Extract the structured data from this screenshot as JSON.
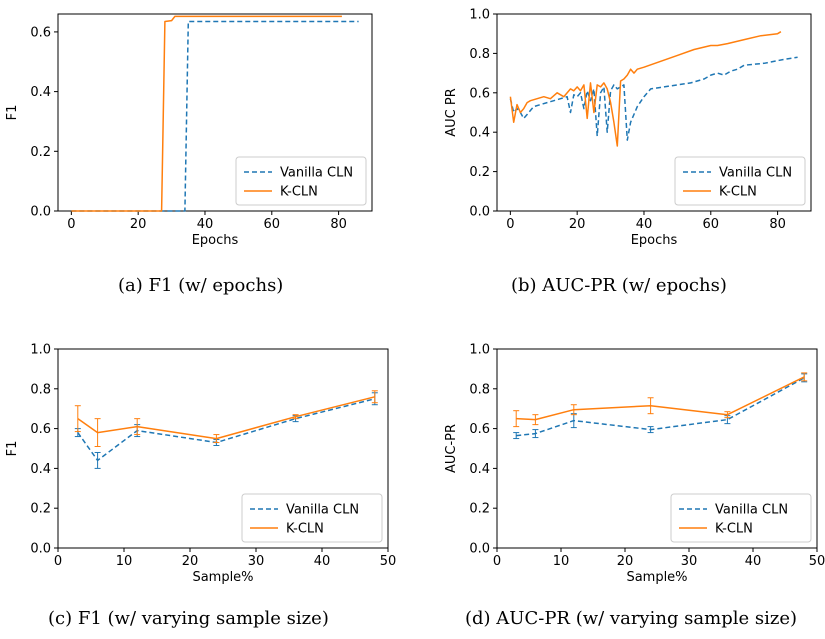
{
  "colors": {
    "vanilla": "#1f77b4",
    "kcln": "#ff7f0e"
  },
  "captions": [
    "(a) F1 (w/ epochs)",
    "(b) AUC-PR (w/ epochs)",
    "(c) F1 (w/ varying sample size)",
    "(d) AUC-PR (w/ varying sample size)"
  ],
  "chart_data": [
    {
      "type": "line",
      "title": "",
      "xlabel": "Epochs",
      "ylabel": "F1",
      "xlim": [
        -4,
        90
      ],
      "ylim": [
        0,
        0.66
      ],
      "xticks": [
        "0",
        "20",
        "40",
        "60",
        "80"
      ],
      "xtick_values": [
        0,
        20,
        40,
        60,
        80
      ],
      "yticks": [
        "0.0",
        "0.2",
        "0.4",
        "0.6"
      ],
      "ytick_values": [
        0,
        0.2,
        0.4,
        0.6
      ],
      "legend": "bottom-right",
      "series": [
        {
          "name": "Vanilla CLN",
          "style": "dashed",
          "x": [
            0,
            34,
            35,
            36,
            86
          ],
          "y": [
            0,
            0,
            0.635,
            0.635,
            0.635
          ]
        },
        {
          "name": "K-CLN",
          "style": "solid",
          "x": [
            0,
            27,
            28,
            30,
            31,
            81
          ],
          "y": [
            0,
            0,
            0.635,
            0.638,
            0.652,
            0.652
          ]
        }
      ]
    },
    {
      "type": "line",
      "title": "",
      "xlabel": "Epochs",
      "ylabel": "AUC PR",
      "xlim": [
        -4,
        90
      ],
      "ylim": [
        0,
        1.0
      ],
      "xticks": [
        "0",
        "20",
        "40",
        "60",
        "80"
      ],
      "xtick_values": [
        0,
        20,
        40,
        60,
        80
      ],
      "yticks": [
        "0.0",
        "0.2",
        "0.4",
        "0.6",
        "0.8",
        "1.0"
      ],
      "ytick_values": [
        0,
        0.2,
        0.4,
        0.6,
        0.8,
        1.0
      ],
      "legend": "bottom-right",
      "series": [
        {
          "name": "Vanilla CLN",
          "style": "dashed",
          "x": [
            0,
            1,
            2,
            3,
            4,
            5,
            6,
            7,
            9,
            11,
            13,
            15,
            17,
            18,
            19,
            20,
            21,
            22,
            23,
            24,
            25,
            26,
            27,
            28,
            29,
            30,
            31,
            32,
            33,
            34,
            35,
            36,
            38,
            40,
            42,
            46,
            50,
            54,
            58,
            60,
            62,
            64,
            66,
            68,
            70,
            76,
            82,
            86
          ],
          "y": [
            0.57,
            0.5,
            0.52,
            0.5,
            0.47,
            0.49,
            0.51,
            0.53,
            0.54,
            0.55,
            0.56,
            0.57,
            0.58,
            0.5,
            0.59,
            0.58,
            0.6,
            0.52,
            0.61,
            0.56,
            0.62,
            0.38,
            0.6,
            0.63,
            0.4,
            0.61,
            0.64,
            0.62,
            0.63,
            0.64,
            0.36,
            0.45,
            0.53,
            0.58,
            0.62,
            0.63,
            0.64,
            0.65,
            0.67,
            0.69,
            0.7,
            0.69,
            0.71,
            0.72,
            0.74,
            0.75,
            0.77,
            0.78
          ]
        },
        {
          "name": "K-CLN",
          "style": "solid",
          "x": [
            0,
            1,
            2,
            3,
            4,
            5,
            6,
            8,
            10,
            12,
            14,
            16,
            18,
            19,
            20,
            21,
            22,
            23,
            24,
            25,
            26,
            27,
            28,
            29,
            30,
            31,
            32,
            33,
            34,
            35,
            36,
            37,
            38,
            40,
            45,
            50,
            55,
            60,
            62,
            65,
            70,
            75,
            80,
            81
          ],
          "y": [
            0.58,
            0.45,
            0.54,
            0.5,
            0.52,
            0.55,
            0.56,
            0.57,
            0.58,
            0.57,
            0.6,
            0.58,
            0.62,
            0.61,
            0.63,
            0.61,
            0.64,
            0.47,
            0.65,
            0.5,
            0.64,
            0.63,
            0.65,
            0.62,
            0.55,
            0.45,
            0.33,
            0.66,
            0.67,
            0.69,
            0.72,
            0.7,
            0.72,
            0.73,
            0.76,
            0.79,
            0.82,
            0.84,
            0.84,
            0.85,
            0.87,
            0.89,
            0.9,
            0.91
          ]
        }
      ]
    },
    {
      "type": "line",
      "title": "",
      "xlabel": "Sample%",
      "ylabel": "F1",
      "xlim": [
        0,
        50
      ],
      "ylim": [
        0,
        1.0
      ],
      "xticks": [
        "0",
        "10",
        "20",
        "30",
        "40",
        "50"
      ],
      "xtick_values": [
        0,
        10,
        20,
        30,
        40,
        50
      ],
      "yticks": [
        "0.0",
        "0.2",
        "0.4",
        "0.6",
        "0.8",
        "1.0"
      ],
      "ytick_values": [
        0,
        0.2,
        0.4,
        0.6,
        0.8,
        1.0
      ],
      "legend": "bottom-right",
      "series": [
        {
          "name": "Vanilla CLN",
          "style": "dashed",
          "x": [
            3,
            6,
            12,
            24,
            36,
            48
          ],
          "y": [
            0.58,
            0.44,
            0.59,
            0.53,
            0.65,
            0.75
          ],
          "err": [
            0.02,
            0.04,
            0.03,
            0.015,
            0.015,
            0.03
          ]
        },
        {
          "name": "K-CLN",
          "style": "solid",
          "x": [
            3,
            6,
            12,
            24,
            36,
            48
          ],
          "y": [
            0.65,
            0.58,
            0.61,
            0.55,
            0.66,
            0.76
          ],
          "err": [
            0.065,
            0.07,
            0.04,
            0.02,
            0.01,
            0.03
          ]
        }
      ]
    },
    {
      "type": "line",
      "title": "",
      "xlabel": "Sample%",
      "ylabel": "AUC-PR",
      "xlim": [
        0,
        50
      ],
      "ylim": [
        0,
        1.0
      ],
      "xticks": [
        "0",
        "10",
        "20",
        "30",
        "40",
        "50"
      ],
      "xtick_values": [
        0,
        10,
        20,
        30,
        40,
        50
      ],
      "yticks": [
        "0.0",
        "0.2",
        "0.4",
        "0.6",
        "0.8",
        "1.0"
      ],
      "ytick_values": [
        0,
        0.2,
        0.4,
        0.6,
        0.8,
        1.0
      ],
      "legend": "bottom-right",
      "series": [
        {
          "name": "Vanilla CLN",
          "style": "dashed",
          "x": [
            3,
            6,
            12,
            24,
            36,
            48
          ],
          "y": [
            0.565,
            0.575,
            0.64,
            0.595,
            0.645,
            0.855
          ],
          "err": [
            0.015,
            0.02,
            0.035,
            0.015,
            0.02,
            0.02
          ]
        },
        {
          "name": "K-CLN",
          "style": "solid",
          "x": [
            3,
            6,
            12,
            24,
            36,
            48
          ],
          "y": [
            0.65,
            0.645,
            0.695,
            0.715,
            0.67,
            0.86
          ],
          "err": [
            0.04,
            0.025,
            0.025,
            0.04,
            0.015,
            0.02
          ]
        }
      ]
    }
  ]
}
